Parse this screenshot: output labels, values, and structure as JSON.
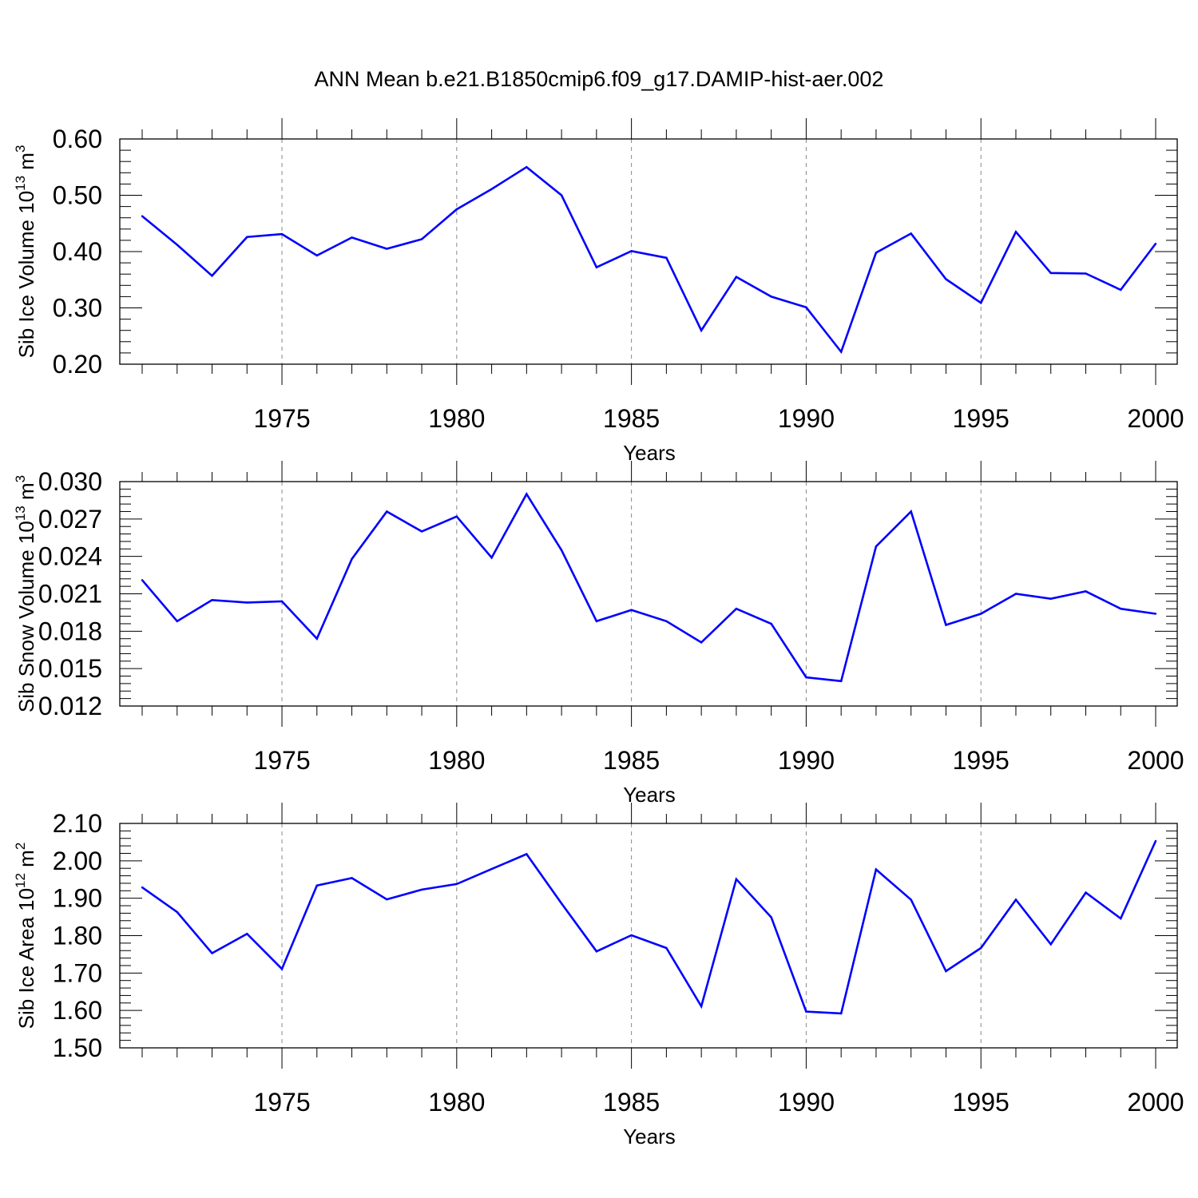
{
  "title": "ANN Mean b.e21.B1850cmip6.f09_g17.DAMIP-hist-aer.002",
  "colors": {
    "line": "#0000ff",
    "frame": "#000000",
    "grid": "#888888"
  },
  "chart_data": [
    {
      "type": "line",
      "xlabel": "Years",
      "ylabel": "Sib Ice Volume 10",
      "ylabel_exp": "13",
      "ylabel_unit": "m",
      "ylabel_unit_exp": "3",
      "xlim": [
        1971,
        2000
      ],
      "ylim": [
        0.2,
        0.6
      ],
      "xticks": [
        "1975",
        "1980",
        "1985",
        "1990",
        "1995",
        "2000"
      ],
      "yticks": [
        "0.20",
        "0.30",
        "0.40",
        "0.50",
        "0.60"
      ],
      "grid": "vertical dashed at major x ticks",
      "series": [
        {
          "x": [
            1971,
            1972,
            1973,
            1974,
            1975,
            1976,
            1977,
            1978,
            1979,
            1980,
            1981,
            1982,
            1983,
            1984,
            1985,
            1986,
            1987,
            1988,
            1989,
            1990,
            1991,
            1992,
            1993,
            1994,
            1995,
            1996,
            1997,
            1998,
            1999,
            2000
          ],
          "values": [
            0.463,
            0.412,
            0.357,
            0.426,
            0.431,
            0.393,
            0.425,
            0.405,
            0.422,
            0.475,
            0.511,
            0.55,
            0.5,
            0.372,
            0.401,
            0.389,
            0.26,
            0.355,
            0.32,
            0.301,
            0.222,
            0.398,
            0.432,
            0.351,
            0.309,
            0.435,
            0.362,
            0.361,
            0.332,
            0.414
          ]
        }
      ]
    },
    {
      "type": "line",
      "xlabel": "Years",
      "ylabel": "Sib Snow Volume 10",
      "ylabel_exp": "13",
      "ylabel_unit": "m",
      "ylabel_unit_exp": "3",
      "xlim": [
        1971,
        2000
      ],
      "ylim": [
        0.012,
        0.03
      ],
      "xticks": [
        "1975",
        "1980",
        "1985",
        "1990",
        "1995",
        "2000"
      ],
      "yticks": [
        "0.012",
        "0.015",
        "0.018",
        "0.021",
        "0.024",
        "0.027",
        "0.030"
      ],
      "grid": "vertical dashed at major x ticks",
      "series": [
        {
          "x": [
            1971,
            1972,
            1973,
            1974,
            1975,
            1976,
            1977,
            1978,
            1979,
            1980,
            1981,
            1982,
            1983,
            1984,
            1985,
            1986,
            1987,
            1988,
            1989,
            1990,
            1991,
            1992,
            1993,
            1994,
            1995,
            1996,
            1997,
            1998,
            1999,
            2000
          ],
          "values": [
            0.0221,
            0.0188,
            0.0205,
            0.0203,
            0.0204,
            0.0174,
            0.0238,
            0.0276,
            0.026,
            0.0272,
            0.0239,
            0.029,
            0.0245,
            0.0188,
            0.0197,
            0.0188,
            0.0171,
            0.0198,
            0.0186,
            0.0143,
            0.014,
            0.0248,
            0.0276,
            0.0185,
            0.0194,
            0.021,
            0.0206,
            0.0212,
            0.0198,
            0.0194
          ]
        }
      ]
    },
    {
      "type": "line",
      "xlabel": "Years",
      "ylabel": "Sib Ice Area 10",
      "ylabel_exp": "12",
      "ylabel_unit": "m",
      "ylabel_unit_exp": "2",
      "xlim": [
        1971,
        2000
      ],
      "ylim": [
        1.5,
        2.1
      ],
      "xticks": [
        "1975",
        "1980",
        "1985",
        "1990",
        "1995",
        "2000"
      ],
      "yticks": [
        "1.50",
        "1.60",
        "1.70",
        "1.80",
        "1.90",
        "2.00",
        "2.10"
      ],
      "grid": "vertical dashed at major x ticks",
      "series": [
        {
          "x": [
            1971,
            1972,
            1973,
            1974,
            1975,
            1976,
            1977,
            1978,
            1979,
            1980,
            1981,
            1982,
            1983,
            1984,
            1985,
            1986,
            1987,
            1988,
            1989,
            1990,
            1991,
            1992,
            1993,
            1994,
            1995,
            1996,
            1997,
            1998,
            1999,
            2000
          ],
          "values": [
            1.929,
            1.863,
            1.753,
            1.805,
            1.711,
            1.934,
            1.954,
            1.897,
            1.923,
            1.938,
            1.978,
            2.018,
            1.886,
            1.758,
            1.801,
            1.767,
            1.611,
            1.951,
            1.849,
            1.597,
            1.592,
            1.977,
            1.896,
            1.705,
            1.767,
            1.896,
            1.777,
            1.915,
            1.846,
            2.053
          ]
        }
      ]
    }
  ]
}
